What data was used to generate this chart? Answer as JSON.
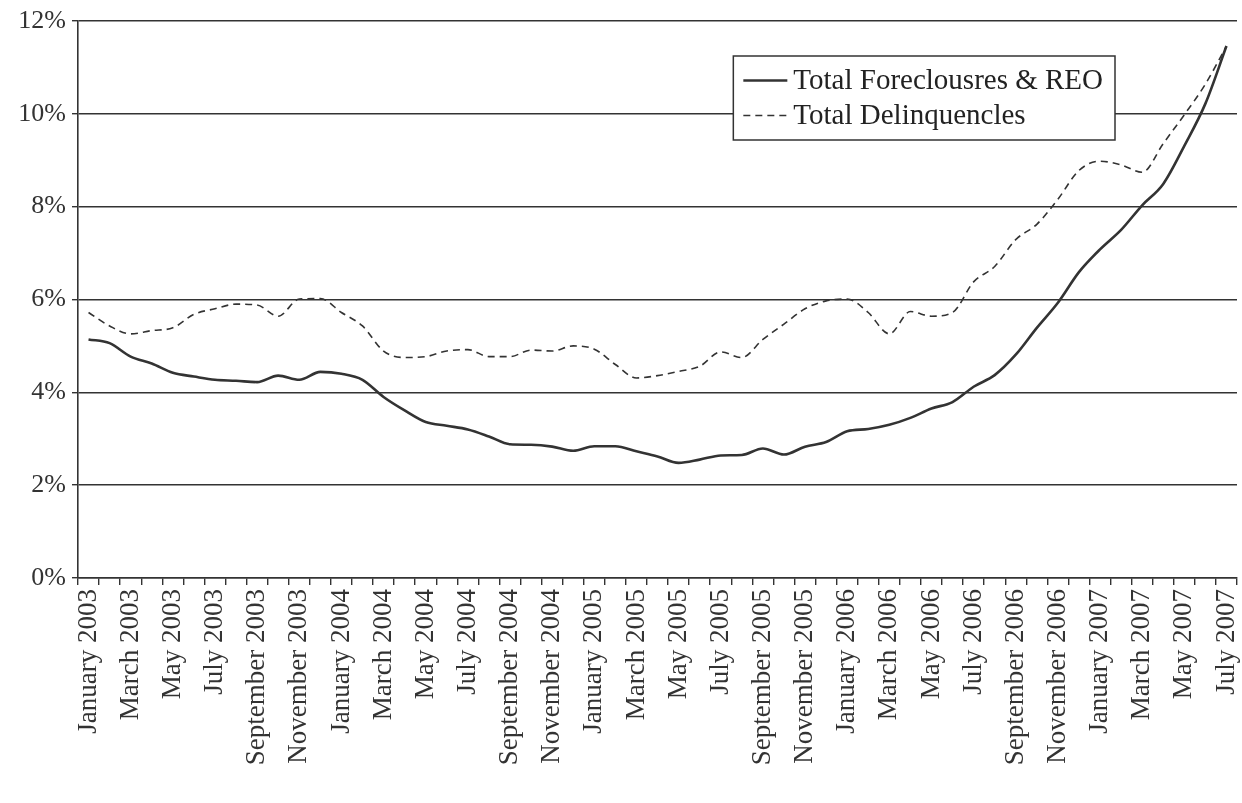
{
  "chart_data": {
    "type": "line",
    "categories": [
      "January 2003",
      null,
      "March 2003",
      null,
      "May 2003",
      null,
      "July 2003",
      null,
      "September 2003",
      null,
      "November 2003",
      null,
      "January 2004",
      null,
      "March 2004",
      null,
      "May 2004",
      null,
      "July 2004",
      null,
      "September 2004",
      null,
      "November 2004",
      null,
      "January 2005",
      null,
      "March 2005",
      null,
      "May 2005",
      null,
      "July 2005",
      null,
      "September 2005",
      null,
      "November 2005",
      null,
      "January 2006",
      null,
      "March 2006",
      null,
      "May 2006",
      null,
      "July 2006",
      null,
      "September 2006",
      null,
      "November 2006",
      null,
      "January 2007",
      null,
      "March 2007",
      null,
      "May 2007",
      null,
      "July 2007"
    ],
    "series": [
      {
        "name": "Total Foreclousres & REO",
        "color": "#333333",
        "line_style": "solid",
        "values": [
          5.14,
          5.06,
          4.77,
          4.62,
          4.42,
          4.34,
          4.27,
          4.25,
          4.22,
          4.36,
          4.27,
          4.44,
          4.4,
          4.27,
          3.9,
          3.61,
          3.36,
          3.28,
          3.2,
          3.05,
          2.88,
          2.87,
          2.83,
          2.74,
          2.84,
          2.84,
          2.73,
          2.62,
          2.48,
          2.55,
          2.64,
          2.65,
          2.79,
          2.66,
          2.83,
          2.93,
          3.16,
          3.21,
          3.3,
          3.45,
          3.65,
          3.79,
          4.12,
          4.37,
          4.81,
          5.39,
          5.93,
          6.59,
          7.08,
          7.5,
          8.03,
          8.49,
          9.31,
          10.22,
          11.46
        ]
      },
      {
        "name": "Total Delinquencles",
        "color": "#333333",
        "line_style": "dashed",
        "values": [
          5.72,
          5.43,
          5.26,
          5.33,
          5.39,
          5.68,
          5.8,
          5.9,
          5.88,
          5.64,
          6.01,
          6.02,
          5.72,
          5.43,
          4.89,
          4.75,
          4.77,
          4.89,
          4.92,
          4.77,
          4.77,
          4.91,
          4.89,
          5.0,
          4.93,
          4.6,
          4.31,
          4.36,
          4.45,
          4.56,
          4.87,
          4.75,
          5.14,
          5.47,
          5.8,
          5.97,
          6.01,
          5.72,
          5.26,
          5.74,
          5.64,
          5.72,
          6.38,
          6.71,
          7.29,
          7.62,
          8.16,
          8.78,
          8.98,
          8.9,
          8.74,
          9.36,
          9.98,
          10.64,
          11.46
        ]
      }
    ],
    "ylim": [
      0,
      12
    ],
    "yticks": [
      {
        "value": 0,
        "label": "0%"
      },
      {
        "value": 2,
        "label": "2%"
      },
      {
        "value": 4,
        "label": "4%"
      },
      {
        "value": 6,
        "label": "6%"
      },
      {
        "value": 8,
        "label": "8%"
      },
      {
        "value": 10,
        "label": "10%"
      },
      {
        "value": 12,
        "label": "12%"
      }
    ],
    "grid": "y",
    "legend": "top right",
    "marker": "none"
  }
}
